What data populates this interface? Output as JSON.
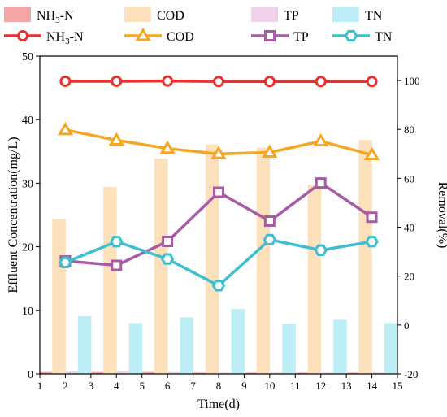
{
  "chart_data": {
    "type": "bar+line",
    "x": [
      2,
      4,
      6,
      8,
      10,
      12,
      14
    ],
    "xlabel": "Time(d)",
    "xlim": [
      1,
      15
    ],
    "xticks": [
      1,
      2,
      3,
      4,
      5,
      6,
      7,
      8,
      9,
      10,
      11,
      12,
      13,
      14,
      15
    ],
    "ylabel_left": "Effluent Concentration(mg/L)",
    "ylim_left": [
      0,
      50
    ],
    "yticks_left": [
      0,
      10,
      20,
      30,
      40,
      50
    ],
    "ylabel_right": "Removal(%)",
    "ylim_right": [
      -20,
      110
    ],
    "yticks_right": [
      -20,
      0,
      20,
      40,
      60,
      80,
      100
    ],
    "legend_placement": "top-left",
    "bar_series": [
      {
        "name": "NH3-N",
        "color": "#f4a6a6",
        "values": [
          0.3,
          0.3,
          0.3,
          0.2,
          0.2,
          0.2,
          0.2
        ]
      },
      {
        "name": "COD",
        "color": "#fde1bc",
        "values": [
          24.4,
          29.4,
          33.9,
          36.1,
          35.6,
          29.8,
          36.8
        ]
      },
      {
        "name": "TP",
        "color": "#efd3ea",
        "values": [
          0.4,
          0.4,
          0.3,
          0.2,
          0.2,
          0.2,
          0.2
        ]
      },
      {
        "name": "TN",
        "color": "#bdeef6",
        "values": [
          9.1,
          8.0,
          8.9,
          10.2,
          7.9,
          8.5,
          8.0
        ]
      }
    ],
    "line_series": [
      {
        "name": "NH3-N",
        "color": "#e8312e",
        "marker": "circle",
        "values": [
          99.7,
          99.7,
          99.8,
          99.6,
          99.6,
          99.6,
          99.6
        ]
      },
      {
        "name": "COD",
        "color": "#f5a623",
        "marker": "triangle",
        "values": [
          79.8,
          75.6,
          72.2,
          70.0,
          70.6,
          75.2,
          69.6
        ]
      },
      {
        "name": "TP",
        "color": "#a85aa6",
        "marker": "square",
        "values": [
          26.2,
          24.4,
          34.2,
          54.3,
          42.5,
          58.1,
          44.1
        ]
      },
      {
        "name": "TN",
        "color": "#3dbfd0",
        "marker": "hexagon",
        "values": [
          25.6,
          34.1,
          27.0,
          16.1,
          34.9,
          30.6,
          34.1
        ]
      }
    ]
  }
}
